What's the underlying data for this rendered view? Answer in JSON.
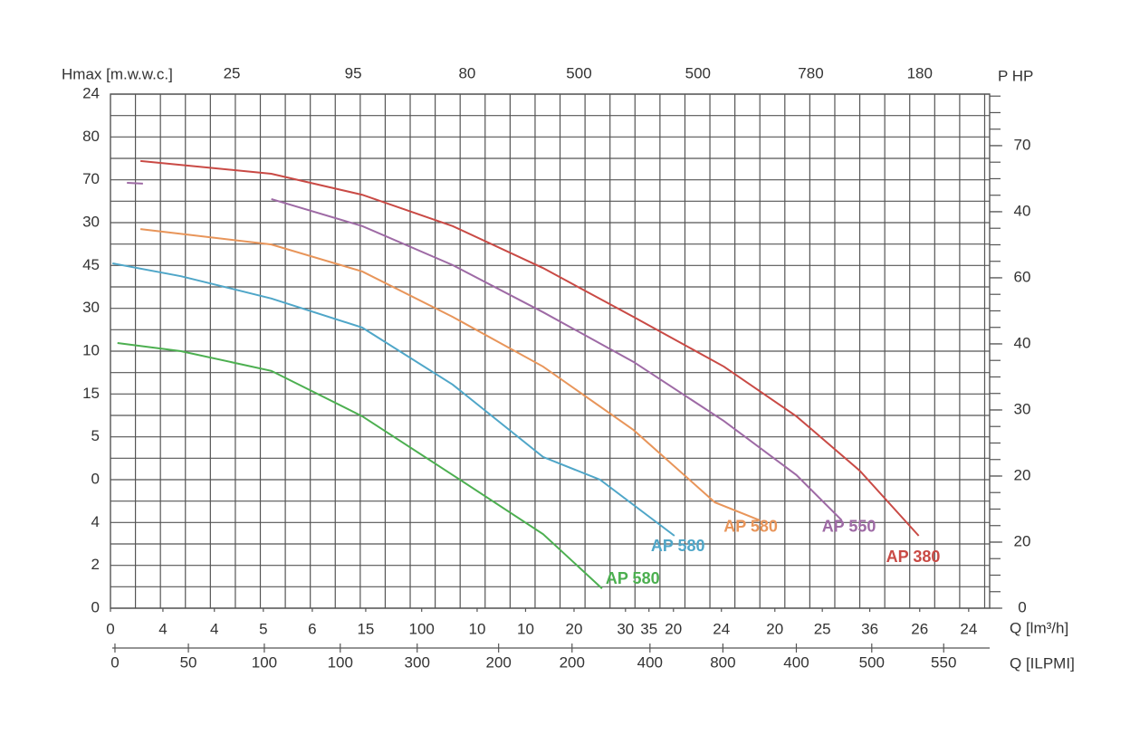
{
  "chart_data": {
    "type": "line",
    "y_title": "Hmax [m.w.w.c.]",
    "y2_title": "P HP",
    "x_title": "Q [lm³/h]",
    "x2_title": "Q [ILPMI]",
    "xlim": [
      0,
      17.6
    ],
    "ylim": [
      0,
      12
    ],
    "y2lim": [
      0,
      7.78
    ],
    "xticks": [
      {
        "value": 0,
        "label": "0"
      },
      {
        "value": 1.05,
        "label": "4"
      },
      {
        "value": 2.08,
        "label": "4"
      },
      {
        "value": 3.06,
        "label": "5"
      },
      {
        "value": 4.04,
        "label": "6"
      },
      {
        "value": 5.11,
        "label": "15"
      },
      {
        "value": 6.23,
        "label": "100"
      },
      {
        "value": 7.34,
        "label": "10"
      },
      {
        "value": 8.31,
        "label": "10"
      },
      {
        "value": 9.28,
        "label": "20"
      },
      {
        "value": 10.31,
        "label": "30"
      },
      {
        "value": 10.78,
        "label": "35"
      },
      {
        "value": 11.27,
        "label": "20"
      },
      {
        "value": 12.23,
        "label": "24"
      },
      {
        "value": 13.3,
        "label": "20"
      },
      {
        "value": 14.25,
        "label": "25"
      },
      {
        "value": 15.2,
        "label": "36"
      },
      {
        "value": 16.2,
        "label": "26"
      },
      {
        "value": 17.18,
        "label": "24"
      }
    ],
    "x2ticks": [
      {
        "value": 0.09,
        "label": "0"
      },
      {
        "value": 1.56,
        "label": "50"
      },
      {
        "value": 3.08,
        "label": "100"
      },
      {
        "value": 4.6,
        "label": "100"
      },
      {
        "value": 6.14,
        "label": "300"
      },
      {
        "value": 7.77,
        "label": "200"
      },
      {
        "value": 9.24,
        "label": "200"
      },
      {
        "value": 10.8,
        "label": "400"
      },
      {
        "value": 12.26,
        "label": "800"
      },
      {
        "value": 13.73,
        "label": "400"
      },
      {
        "value": 15.24,
        "label": "500"
      },
      {
        "value": 16.68,
        "label": "550"
      }
    ],
    "topticks": [
      {
        "value": 2.43,
        "label": "25"
      },
      {
        "value": 4.86,
        "label": "95"
      },
      {
        "value": 7.14,
        "label": "80"
      },
      {
        "value": 9.38,
        "label": "500"
      },
      {
        "value": 11.76,
        "label": "500"
      },
      {
        "value": 14.02,
        "label": "780"
      },
      {
        "value": 16.2,
        "label": "180"
      }
    ],
    "yticks": [
      {
        "value": 0,
        "label": "0"
      },
      {
        "value": 1,
        "label": "2"
      },
      {
        "value": 2,
        "label": "4"
      },
      {
        "value": 3,
        "label": "0"
      },
      {
        "value": 4,
        "label": "5"
      },
      {
        "value": 5,
        "label": "15"
      },
      {
        "value": 6,
        "label": "10"
      },
      {
        "value": 7,
        "label": "30"
      },
      {
        "value": 8,
        "label": "45"
      },
      {
        "value": 9,
        "label": "30"
      },
      {
        "value": 10,
        "label": "70"
      },
      {
        "value": 11,
        "label": "80"
      },
      {
        "value": 12,
        "label": "24"
      }
    ],
    "y2ticks": [
      {
        "value": 0,
        "label": "0"
      },
      {
        "value": 1,
        "label": "20"
      },
      {
        "value": 2,
        "label": "20"
      },
      {
        "value": 3,
        "label": "30"
      },
      {
        "value": 4,
        "label": "40"
      },
      {
        "value": 5,
        "label": "60"
      },
      {
        "value": 6,
        "label": "40"
      },
      {
        "value": 7,
        "label": "70"
      }
    ],
    "series": [
      {
        "name": "AP 380",
        "color": "#c94a45",
        "x": [
          0.6,
          3.22,
          5.04,
          6.85,
          8.66,
          10.47,
          12.28,
          13.73,
          15.0,
          16.18
        ],
        "values": [
          10.44,
          10.14,
          9.65,
          8.92,
          7.94,
          6.8,
          5.64,
          4.48,
          3.21,
          1.69
        ]
      },
      {
        "name": "AP 550",
        "color": "#9e6aa5",
        "x": [
          0.33,
          0.65,
          0.96,
          3.22,
          5.04,
          6.85,
          8.66,
          10.47,
          12.28,
          13.73,
          14.64
        ],
        "values": [
          9.93,
          9.91,
          null,
          9.55,
          8.92,
          8.01,
          6.91,
          5.75,
          4.37,
          3.11,
          2.05
        ]
      },
      {
        "name": "AP 580",
        "color": "#e8955a",
        "x": [
          0.6,
          3.22,
          5.04,
          6.85,
          8.66,
          10.47,
          12.1,
          13.0
        ],
        "values": [
          8.85,
          8.49,
          7.86,
          6.8,
          5.64,
          4.16,
          2.47,
          2.05
        ]
      },
      {
        "name": "AP 580",
        "color": "#4fa6c8",
        "x": [
          0.04,
          1.41,
          3.22,
          5.04,
          6.85,
          8.66,
          9.8,
          11.29
        ],
        "values": [
          8.05,
          7.75,
          7.23,
          6.55,
          5.22,
          3.53,
          3.0,
          1.69
        ]
      },
      {
        "name": "AP 580",
        "color": "#4caf50",
        "x": [
          0.14,
          1.41,
          3.22,
          5.04,
          6.85,
          8.66,
          9.84
        ],
        "values": [
          6.19,
          6.0,
          5.54,
          4.48,
          3.11,
          1.73,
          0.46
        ]
      }
    ]
  }
}
